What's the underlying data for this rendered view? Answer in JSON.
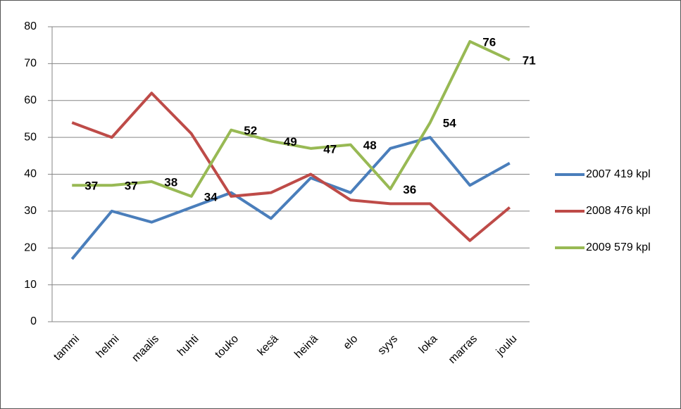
{
  "chart_data": {
    "type": "line",
    "categories": [
      "tammi",
      "helmi",
      "maalis",
      "huhti",
      "touko",
      "kesä",
      "heinä",
      "elo",
      "syys",
      "loka",
      "marras",
      "joulu"
    ],
    "series": [
      {
        "name": "2007 419 kpl",
        "color": "#4a7ebb",
        "values": [
          17,
          30,
          27,
          31,
          35,
          28,
          39,
          35,
          47,
          50,
          37,
          43
        ]
      },
      {
        "name": "2008 476 kpl",
        "color": "#be4b48",
        "values": [
          54,
          50,
          62,
          51,
          34,
          35,
          40,
          33,
          32,
          32,
          22,
          31
        ]
      },
      {
        "name": "2009 579 kpl",
        "color": "#98b954",
        "values": [
          37,
          37,
          38,
          34,
          52,
          49,
          47,
          48,
          36,
          54,
          76,
          71
        ],
        "data_labels": true
      }
    ],
    "ylim": [
      0,
      80
    ],
    "yticks": [
      0,
      10,
      20,
      30,
      40,
      50,
      60,
      70,
      80
    ],
    "grid": true,
    "legend": "right"
  }
}
